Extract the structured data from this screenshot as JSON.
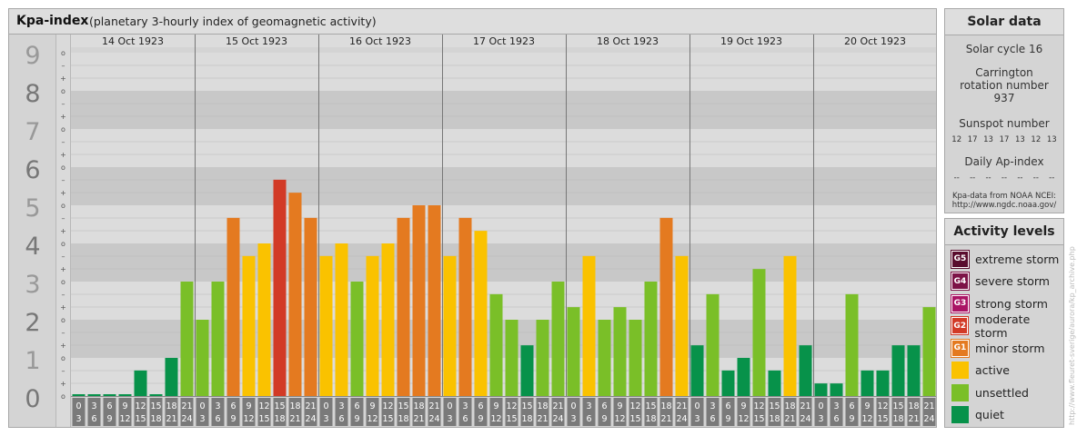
{
  "header": {
    "title": "Kpa-index",
    "subtitle": "(planetary 3-hourly index of geomagnetic activity)"
  },
  "solar": {
    "title": "Solar data",
    "cycle": "Solar cycle 16",
    "carrington": "Carrington rotation number 937",
    "sunspot_label": "Sunspot number",
    "sunspot_values": [
      "12",
      "17",
      "13",
      "17",
      "13",
      "12",
      "13"
    ],
    "ap_label": "Daily Ap-index",
    "ap_values": [
      "--",
      "--",
      "--",
      "--",
      "--",
      "--",
      "--"
    ],
    "source_line1": "Kpa-data from NOAA NCEI:",
    "source_line2": "http://www.ngdc.noaa.gov/"
  },
  "activity": {
    "title": "Activity levels",
    "levels": [
      {
        "badge": "G5",
        "label": "extreme storm",
        "color": "#5a0c2e"
      },
      {
        "badge": "G4",
        "label": "severe storm",
        "color": "#7d1347"
      },
      {
        "badge": "G3",
        "label": "strong storm",
        "color": "#aa1465"
      },
      {
        "badge": "G2",
        "label": "moderate storm",
        "color": "#d23a26"
      },
      {
        "badge": "G1",
        "label": "minor storm",
        "color": "#e47a20"
      },
      {
        "badge": "",
        "label": "active",
        "color": "#fac200"
      },
      {
        "badge": "",
        "label": "unsettled",
        "color": "#7abf28"
      },
      {
        "badge": "",
        "label": "quiet",
        "color": "#07924a"
      }
    ]
  },
  "side_text": "http://www.fleuret-sverige/aurora/kp_archive.php",
  "chart_data": {
    "type": "bar",
    "ylim": [
      0,
      9
    ],
    "yticks": [
      "0",
      "1",
      "2",
      "3",
      "4",
      "5",
      "6",
      "7",
      "8",
      "9"
    ],
    "subticks": [
      "o",
      "+",
      "–"
    ],
    "days": [
      "14 Oct 1923",
      "15 Oct 1923",
      "16 Oct 1923",
      "17 Oct 1923",
      "18 Oct 1923",
      "19 Oct 1923",
      "20 Oct 1923"
    ],
    "hours_start": [
      "0",
      "3",
      "6",
      "9",
      "12",
      "15",
      "18",
      "21"
    ],
    "hours_end": [
      "3",
      "6",
      "9",
      "12",
      "15",
      "18",
      "21",
      "24"
    ],
    "values": [
      0,
      0,
      0,
      0,
      0.67,
      0,
      1,
      3,
      2,
      3,
      4.67,
      3.67,
      4,
      5.67,
      5.33,
      4.67,
      3.67,
      4,
      3,
      3.67,
      4,
      4.67,
      5,
      5,
      3.67,
      4.67,
      4.33,
      2.67,
      2,
      1.33,
      2,
      3,
      2.33,
      3.67,
      2,
      2.33,
      2,
      3,
      4.67,
      3.67,
      1.33,
      2.67,
      0.67,
      1,
      3.33,
      0.67,
      3.67,
      1.33,
      0.33,
      0.33,
      2.67,
      0.67,
      0.67,
      1.33,
      1.33,
      2.33
    ]
  }
}
